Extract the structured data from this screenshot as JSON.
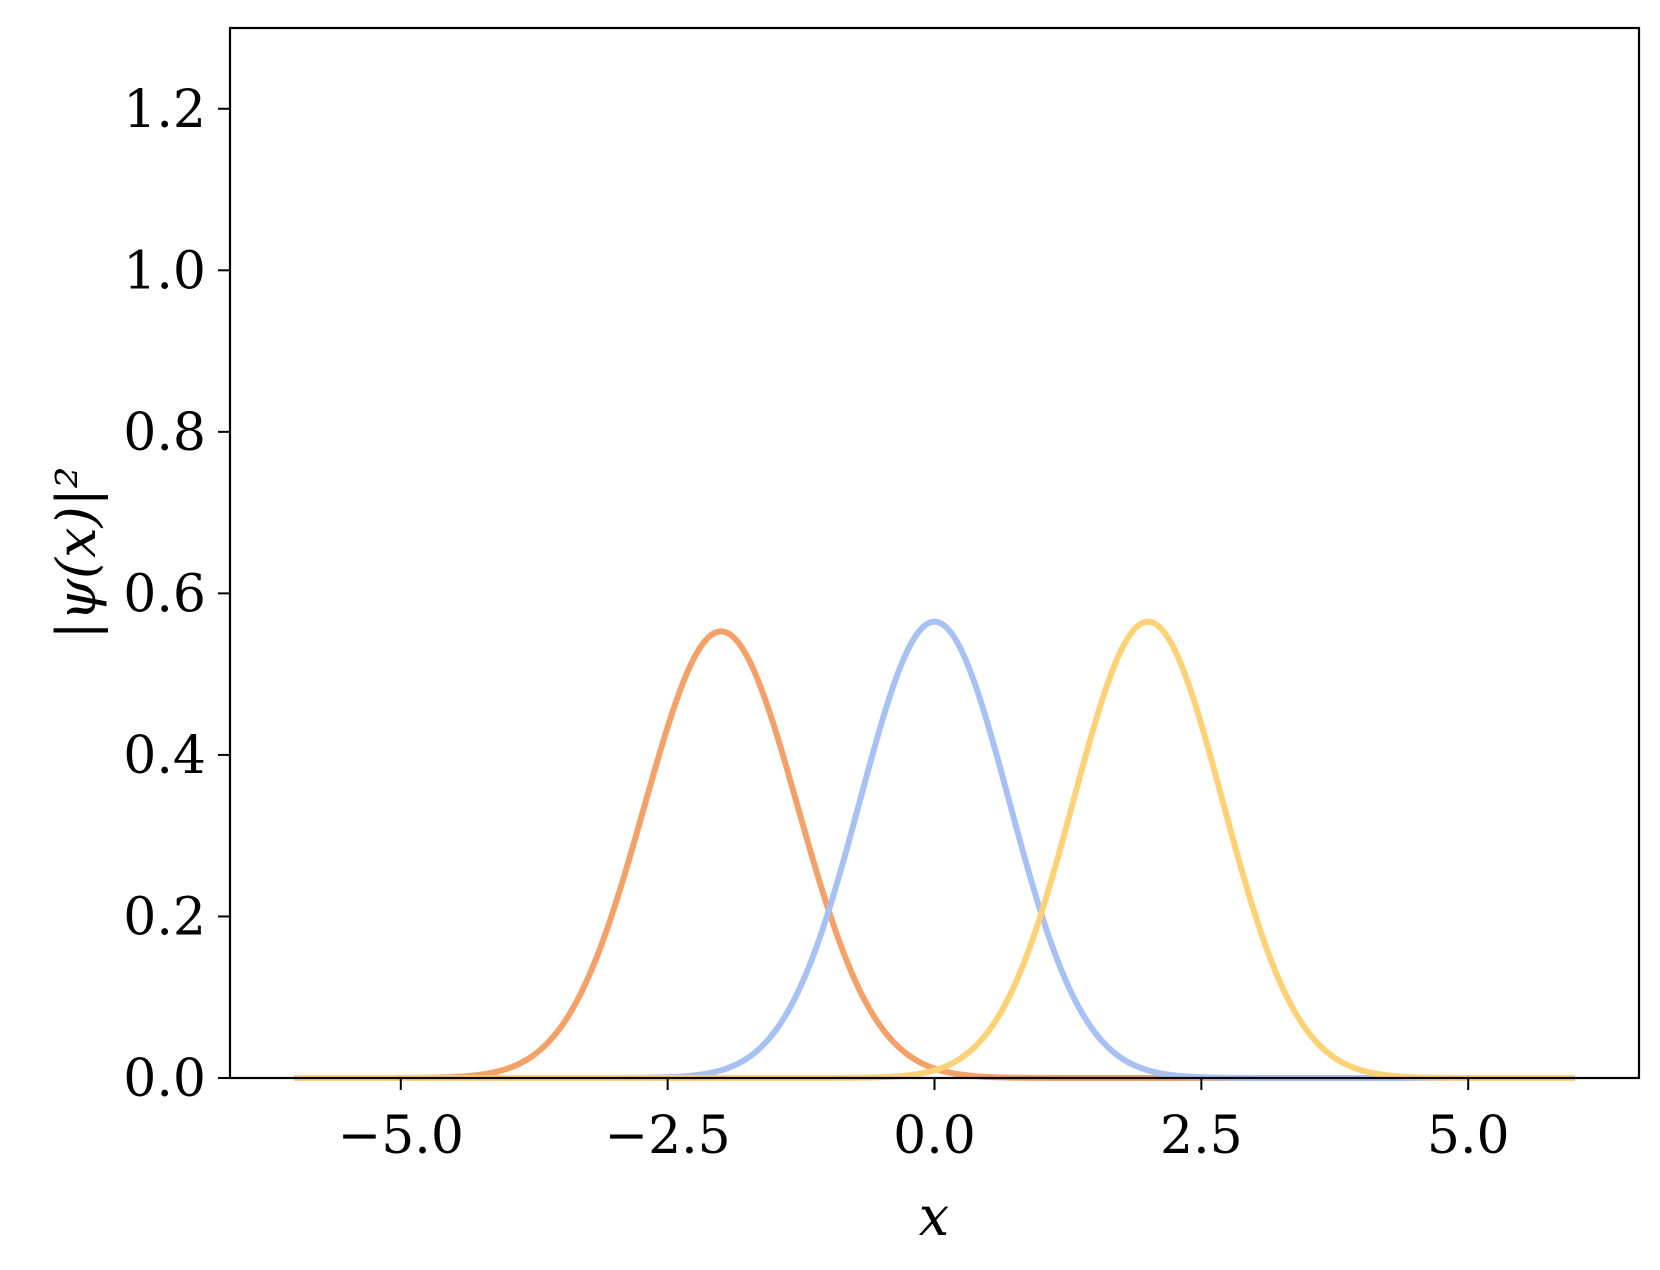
{
  "chart_data": {
    "type": "line",
    "xlabel": "x",
    "ylabel": "|ψ(x)|²",
    "xlim": [
      -6.6,
      6.6
    ],
    "ylim": [
      0.0,
      1.3
    ],
    "xticks": [
      "−5.0",
      "−2.5",
      "0.0",
      "2.5",
      "5.0"
    ],
    "xtick_values": [
      -5.0,
      -2.5,
      0.0,
      2.5,
      5.0
    ],
    "yticks": [
      "0.0",
      "0.2",
      "0.4",
      "0.6",
      "0.8",
      "1.0",
      "1.2"
    ],
    "ytick_values": [
      0.0,
      0.2,
      0.4,
      0.6,
      0.8,
      1.0,
      1.2
    ],
    "x_range": [
      -6.0,
      6.0
    ],
    "grid": false,
    "series": [
      {
        "color": "#f4a069",
        "peak_x": -2.0,
        "peak_y": 0.553,
        "sigma": 0.72
      },
      {
        "color": "#a8c1f4",
        "peak_x": 0.0,
        "peak_y": 0.565,
        "sigma": 0.7
      },
      {
        "color": "#fdd175",
        "peak_x": 2.0,
        "peak_y": 0.565,
        "sigma": 0.7
      }
    ]
  }
}
